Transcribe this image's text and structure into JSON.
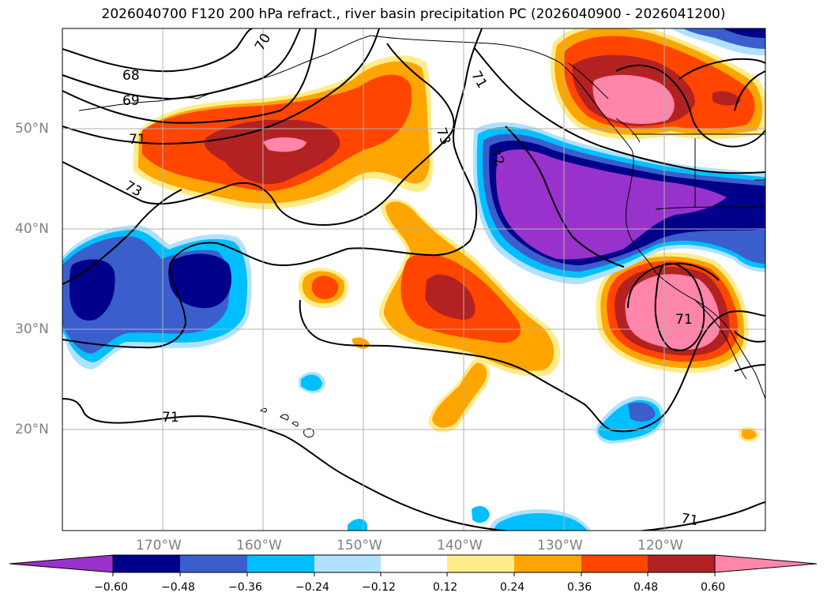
{
  "title": "2026040700 F120 200 hPa refract., river basin precipitation PC (2026040900 - 2026041200)",
  "lat_labels": [
    "50°N",
    "40°N",
    "30°N",
    "20°N"
  ],
  "lon_labels": [
    "170°W",
    "160°W",
    "150°W",
    "140°W",
    "130°W",
    "120°W"
  ],
  "contour_labels": [
    "70",
    "68",
    "69",
    "71",
    "73",
    "71",
    "72",
    "73",
    "71",
    "71",
    "71"
  ],
  "colorbar": {
    "ticks": [
      "−0.60",
      "−0.48",
      "−0.36",
      "−0.24",
      "−0.12",
      "0.12",
      "0.24",
      "0.36",
      "0.48",
      "0.60"
    ],
    "colors": [
      "#9932cc",
      "#00008b",
      "#3a5fcd",
      "#00bfff",
      "#b0e2ff",
      "#ffffff",
      "#ffec8b",
      "#ffa500",
      "#ff4500",
      "#b22222",
      "#ff85aa"
    ]
  }
}
